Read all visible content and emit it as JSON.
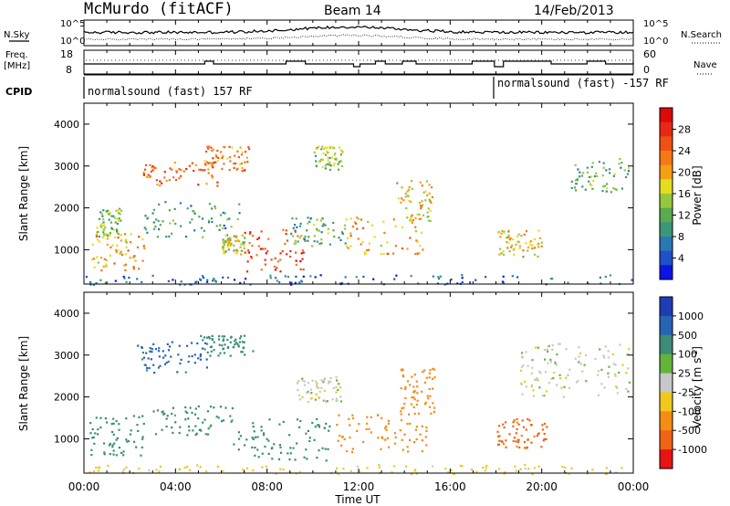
{
  "header": {
    "station": "McMurdo (fitACF)",
    "beam": "Beam 14",
    "date": "14/Feb/2013"
  },
  "panels": {
    "nsky_label": "N.Sky",
    "nsearch_label": "N.Search",
    "noise_ticks": [
      "10^5",
      "10^0"
    ],
    "freq_label_line1": "Freq.",
    "freq_label_line2": "[MHz]",
    "freq_ticks": [
      "18",
      "8"
    ],
    "nave_label": "Nave",
    "nave_ticks": [
      "60",
      "0"
    ],
    "cpid_label": "CPID",
    "cpid_segments": [
      "normalsound (fast) 157 RF",
      "normalsound (fast) -157 RF"
    ]
  },
  "chart_data": [
    {
      "type": "heatmap",
      "title": "",
      "xlabel": "Time UT",
      "ylabel": "Slant Range [km]",
      "x_ticks": [
        "00:00",
        "04:00",
        "08:00",
        "12:00",
        "16:00",
        "20:00",
        "00:00"
      ],
      "y_ticks": [
        "1000",
        "2000",
        "3000",
        "4000"
      ],
      "ylim": [
        180,
        4500
      ],
      "colorbar": {
        "label": "Power [dB]",
        "ticks": [
          "4",
          "8",
          "12",
          "16",
          "20",
          "24",
          "28"
        ],
        "colors": [
          "#0a14e6",
          "#1e50c8",
          "#2878b4",
          "#3c9678",
          "#5aaa50",
          "#96c83c",
          "#e6dc1e",
          "#f5a014",
          "#f57814",
          "#f05014",
          "#e62814",
          "#dc0a0a"
        ]
      },
      "regions": [
        {
          "t0": 0.3,
          "t1": 2.6,
          "r0": 500,
          "r1": 1400,
          "v": 20
        },
        {
          "t0": 0.5,
          "t1": 1.6,
          "r0": 1300,
          "r1": 2000,
          "v": 14
        },
        {
          "t0": 2.5,
          "t1": 5.8,
          "r0": 2550,
          "r1": 3150,
          "v": 24
        },
        {
          "t0": 5.2,
          "t1": 7.2,
          "r0": 2900,
          "r1": 3500,
          "v": 22
        },
        {
          "t0": 2.6,
          "t1": 6.8,
          "r0": 1300,
          "r1": 2200,
          "v": 10
        },
        {
          "t0": 6.0,
          "t1": 7.0,
          "r0": 900,
          "r1": 1400,
          "v": 16
        },
        {
          "t0": 7.0,
          "t1": 9.6,
          "r0": 500,
          "r1": 1500,
          "v": 26
        },
        {
          "t0": 9.0,
          "t1": 11.4,
          "r0": 1100,
          "r1": 1800,
          "v": 12
        },
        {
          "t0": 10.0,
          "t1": 11.3,
          "r0": 2900,
          "r1": 3500,
          "v": 14
        },
        {
          "t0": 11.4,
          "t1": 14.8,
          "r0": 900,
          "r1": 1800,
          "v": 20
        },
        {
          "t0": 13.6,
          "t1": 15.2,
          "r0": 1700,
          "r1": 2700,
          "v": 18
        },
        {
          "t0": 18.0,
          "t1": 20.0,
          "r0": 850,
          "r1": 1500,
          "v": 18
        },
        {
          "t0": 21.2,
          "t1": 23.8,
          "r0": 2400,
          "r1": 3200,
          "v": 12
        },
        {
          "t0": 0.0,
          "t1": 24.0,
          "r0": 180,
          "r1": 420,
          "v": 6
        }
      ]
    },
    {
      "type": "heatmap",
      "title": "",
      "xlabel": "Time UT",
      "ylabel": "Slant Range [km]",
      "x_ticks": [
        "00:00",
        "04:00",
        "08:00",
        "12:00",
        "16:00",
        "20:00",
        "00:00"
      ],
      "y_ticks": [
        "1000",
        "2000",
        "3000",
        "4000"
      ],
      "ylim": [
        180,
        4500
      ],
      "colorbar": {
        "label": "Velocity [m s^-1]",
        "ticks": [
          "1000",
          "500",
          "100",
          "25",
          "-25",
          "-100",
          "-500",
          "-1000"
        ],
        "colors": [
          "#1e3cb4",
          "#2864b4",
          "#3c8c78",
          "#64b43c",
          "#c8c8c8",
          "#f0c81e",
          "#f58c14",
          "#f06414",
          "#e61414"
        ]
      },
      "regions": [
        {
          "t0": 0.2,
          "t1": 2.6,
          "r0": 600,
          "r1": 1600,
          "v": 300
        },
        {
          "t0": 2.3,
          "t1": 5.4,
          "r0": 2600,
          "r1": 3350,
          "v": 700
        },
        {
          "t0": 5.0,
          "t1": 7.4,
          "r0": 3000,
          "r1": 3500,
          "v": 200
        },
        {
          "t0": 3.0,
          "t1": 6.5,
          "r0": 1100,
          "r1": 1800,
          "v": 150
        },
        {
          "t0": 6.5,
          "t1": 10.7,
          "r0": 500,
          "r1": 1500,
          "v": 200
        },
        {
          "t0": 9.2,
          "t1": 11.2,
          "r0": 1900,
          "r1": 2500,
          "v": 0
        },
        {
          "t0": 11.0,
          "t1": 15.0,
          "r0": 700,
          "r1": 1600,
          "v": -300
        },
        {
          "t0": 13.8,
          "t1": 15.3,
          "r0": 1600,
          "r1": 2700,
          "v": -300
        },
        {
          "t0": 18.0,
          "t1": 20.2,
          "r0": 800,
          "r1": 1500,
          "v": -700
        },
        {
          "t0": 19.0,
          "t1": 23.8,
          "r0": 2000,
          "r1": 3300,
          "v": 0
        },
        {
          "t0": 0.0,
          "t1": 24.0,
          "r0": 180,
          "r1": 400,
          "v": -60
        }
      ]
    }
  ]
}
